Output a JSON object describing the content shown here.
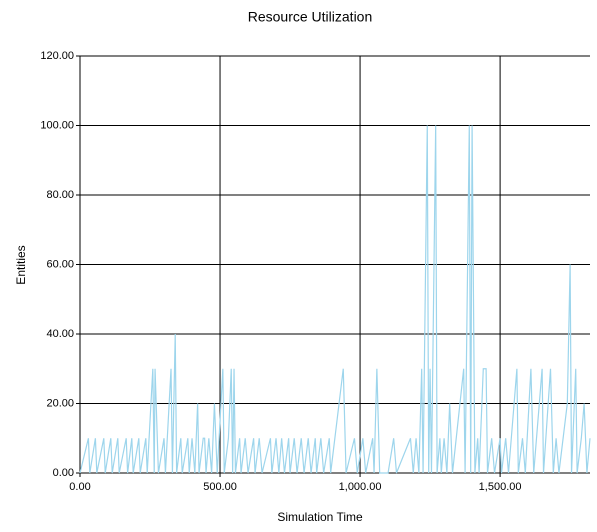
{
  "chart_data": {
    "type": "line",
    "title": "Resource Utilization",
    "x_label": "Simulation Time",
    "y_label": "Entities",
    "x": [
      0,
      30,
      35,
      55,
      60,
      85,
      90,
      110,
      115,
      135,
      140,
      165,
      170,
      185,
      190,
      210,
      215,
      235,
      240,
      260,
      265,
      268,
      280,
      300,
      305,
      325,
      330,
      340,
      345,
      360,
      365,
      385,
      390,
      400,
      410,
      420,
      425,
      440,
      445,
      450,
      460,
      470,
      480,
      490,
      510,
      515,
      530,
      540,
      545,
      550,
      555,
      570,
      575,
      590,
      600,
      620,
      625,
      640,
      650,
      680,
      685,
      700,
      710,
      720,
      730,
      745,
      750,
      765,
      775,
      790,
      800,
      815,
      825,
      840,
      845,
      860,
      870,
      890,
      895,
      940,
      950,
      980,
      990,
      1010,
      1020,
      1045,
      1050,
      1060,
      1070,
      1100,
      1120,
      1130,
      1180,
      1190,
      1200,
      1210,
      1220,
      1225,
      1240,
      1245,
      1250,
      1255,
      1270,
      1275,
      1285,
      1290,
      1300,
      1310,
      1320,
      1330,
      1370,
      1375,
      1390,
      1395,
      1400,
      1410,
      1420,
      1425,
      1440,
      1450,
      1455,
      1470,
      1480,
      1500,
      1505,
      1520,
      1530,
      1560,
      1565,
      1580,
      1590,
      1610,
      1620,
      1650,
      1655,
      1680,
      1690,
      1700,
      1710,
      1740,
      1750,
      1755,
      1770,
      1775,
      1790,
      1800,
      1810,
      1821
    ],
    "series": [
      {
        "color": "#9dd5ec",
        "values": [
          0,
          10,
          0,
          10,
          0,
          10,
          0,
          10,
          0,
          10,
          0,
          10,
          0,
          10,
          0,
          10,
          0,
          10,
          0,
          30,
          0,
          30,
          0,
          10,
          0,
          30,
          0,
          40,
          0,
          10,
          0,
          10,
          0,
          10,
          0,
          20,
          0,
          10,
          10,
          0,
          10,
          0,
          20,
          0,
          30,
          0,
          10,
          30,
          0,
          30,
          0,
          10,
          0,
          10,
          0,
          10,
          0,
          10,
          0,
          10,
          0,
          10,
          0,
          10,
          0,
          10,
          0,
          10,
          0,
          10,
          0,
          10,
          0,
          10,
          0,
          10,
          0,
          10,
          0,
          30,
          0,
          10,
          0,
          10,
          0,
          10,
          0,
          30,
          0,
          0,
          10,
          0,
          10,
          0,
          10,
          0,
          30,
          0,
          100,
          0,
          30,
          0,
          100,
          0,
          10,
          0,
          10,
          0,
          20,
          0,
          30,
          0,
          100,
          0,
          100,
          0,
          10,
          0,
          30,
          30,
          0,
          10,
          0,
          10,
          0,
          10,
          0,
          30,
          0,
          10,
          0,
          30,
          0,
          30,
          0,
          30,
          0,
          10,
          0,
          20,
          60,
          0,
          30,
          0,
          10,
          20,
          0,
          10
        ]
      }
    ],
    "xlim": [
      0,
      1821
    ],
    "ylim": [
      0,
      120
    ],
    "xticks": [
      {
        "value": 0,
        "label": "0.00"
      },
      {
        "value": 500,
        "label": "500.00"
      },
      {
        "value": 1000,
        "label": "1,000.00"
      },
      {
        "value": 1500,
        "label": "1,500.00"
      }
    ],
    "yticks": [
      {
        "value": 0,
        "label": "0.00"
      },
      {
        "value": 20,
        "label": "20.00"
      },
      {
        "value": 40,
        "label": "40.00"
      },
      {
        "value": 60,
        "label": "60.00"
      },
      {
        "value": 80,
        "label": "80.00"
      },
      {
        "value": 100,
        "label": "100.00"
      },
      {
        "value": 120,
        "label": "120.00"
      }
    ],
    "grid": true
  }
}
